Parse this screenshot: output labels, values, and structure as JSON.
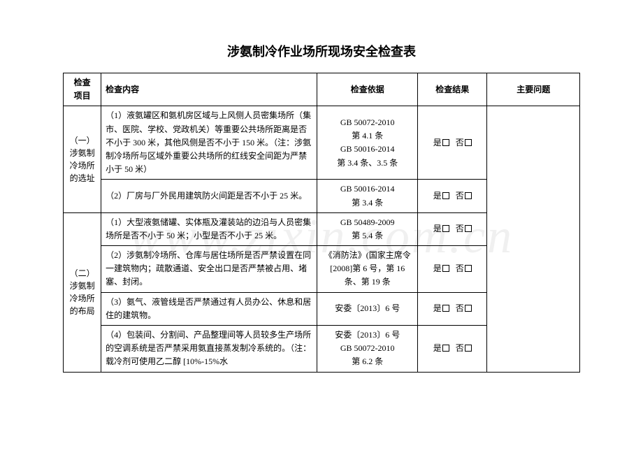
{
  "title": "涉氨制冷作业场所现场安全检查表",
  "watermark": "www.zixin.com.cn",
  "headers": {
    "item": "检查\n项目",
    "content": "检查内容",
    "basis": "检查依据",
    "result": "检查结果",
    "issue": "主要问题"
  },
  "result_labels": {
    "yes": "是",
    "no": "否"
  },
  "sections": [
    {
      "category": "（一）\n涉氨制\n冷场所\n的选址",
      "rows": [
        {
          "content": "（1）液氨罐区和氨机房区域与上风侧人员密集场所（集市、医院、学校、党政机关）等重要公共场所距离是否不小于 300 米，其他风侧是否不小于 150 米。（注：涉氨制冷场所与区域外重要公共场所的红线安全间距为严禁小于 50 米）",
          "basis": "GB 50072-2010\n第 4.1 条\nGB 50016-2014\n第 3.4 条、3.5 条"
        },
        {
          "content": "（2）厂房与厂外民用建筑防火间距是否不小于 25 米。",
          "basis": "GB 50016-2014\n第 3.4 条"
        }
      ]
    },
    {
      "category": "（二）\n涉氨制\n冷场所\n的布局",
      "rows": [
        {
          "content": "（1）大型液氨储罐、实体瓶及灌装站的边沿与人员密集场所是否不小于 50 米；小型是否不小于 25 米。",
          "basis": "GB 50489-2009\n第 5.4 条"
        },
        {
          "content": "（2）涉氨制冷场所、仓库与居住场所是否严禁设置在同一建筑物内；疏散通道、安全出口是否严禁被占用、堵塞、封闭。",
          "basis": "《消防法》(国家主席令[2008]第 6 号，第 16 条、第 19 条"
        },
        {
          "content": "（3）氨气、液管线是否严禁通过有人员办公、休息和居住的建筑物。",
          "basis": "安委〔2013〕6 号"
        },
        {
          "content": "（4）包装间、分割间、产品整理间等人员较多生产场所的空调系统是否严禁采用氨直接蒸发制冷系统的。（注：载冷剂可使用乙二醇 [10%-15%水",
          "basis": "安委〔2013〕6 号\nGB 50072-2010\n第 6.2 条"
        }
      ]
    }
  ]
}
